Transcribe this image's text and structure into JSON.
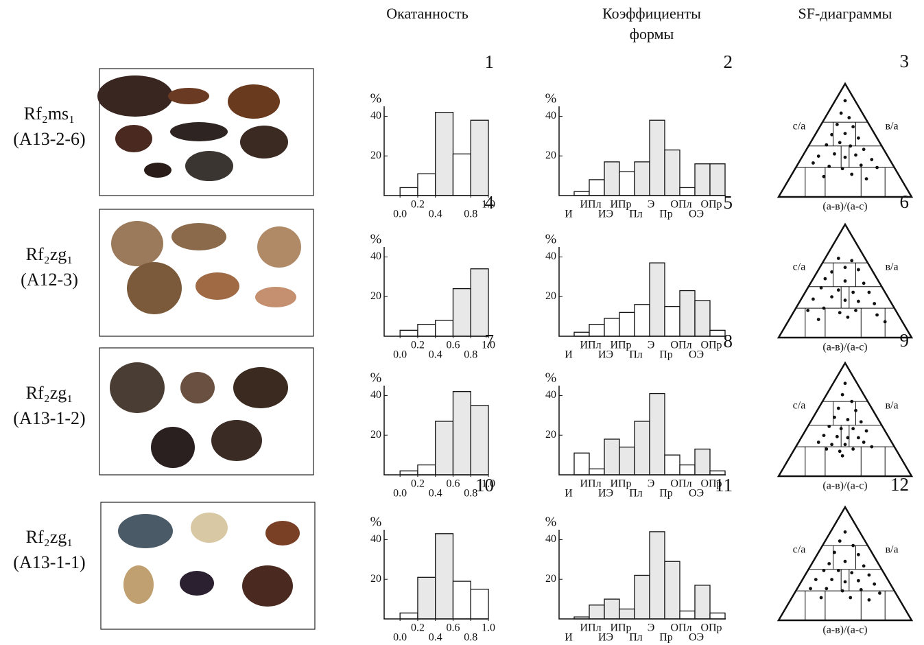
{
  "headers": [
    [
      "Окатанность"
    ],
    [
      "Коэффициенты",
      "формы"
    ],
    [
      "SF-диаграммы"
    ]
  ],
  "rows": [
    {
      "formation": "Rf₂ms₁",
      "sample": "(A13-2-6)"
    },
    {
      "formation": "Rf₂zg₁",
      "sample": "(A12-3)"
    },
    {
      "formation": "Rf₂zg₁",
      "sample": "(A13-1-2)"
    },
    {
      "formation": "Rf₂zg₁",
      "sample": "(A13-1-1)"
    }
  ],
  "chart_data": [
    {
      "type": "histogram",
      "title": "1",
      "y_label": "%",
      "bins": [
        0,
        0.2,
        0.4,
        0.6,
        0.8,
        1.0
      ],
      "values": [
        4,
        11,
        42,
        21,
        38
      ],
      "colors": [
        "#ffffff",
        "#ffffff",
        "#e8e8e8",
        "#ffffff",
        "#e8e8e8"
      ],
      "xlim": [
        -0.18,
        1.0
      ],
      "ylim": [
        0,
        45
      ],
      "yticks": [
        20,
        40
      ],
      "xticks": [
        {
          "value": 0,
          "label": "0.0"
        },
        0.2,
        0.4,
        0.8,
        {
          "value": 1,
          "label": "1.0"
        }
      ]
    },
    {
      "type": "bar",
      "title": "2",
      "y_label": "%",
      "categories": [
        "И",
        "ИПл",
        "ИЭ",
        "ИПр",
        "Пл",
        "Э",
        "Пр",
        "ОПл",
        "ОЭ",
        "ОПр"
      ],
      "values": [
        2,
        8,
        17,
        12,
        17,
        38,
        23,
        4,
        16,
        16
      ],
      "colors": [
        "#ffffff",
        "#ffffff",
        "#e8e8e8",
        "#ffffff",
        "#e8e8e8",
        "#e8e8e8",
        "#e8e8e8",
        "#ffffff",
        "#e8e8e8",
        "#e8e8e8"
      ],
      "ylim": [
        0,
        45
      ],
      "yticks": [
        20,
        40
      ]
    },
    {
      "type": "ternary",
      "title": "3",
      "left_label": "с/а",
      "right_label": "в/а",
      "bottom_label": "(а-в)/(а-с)",
      "x": [
        0.5,
        0.47,
        0.53,
        0.44,
        0.56,
        0.4,
        0.5,
        0.6,
        0.36,
        0.46,
        0.54,
        0.64,
        0.3,
        0.42,
        0.5,
        0.58,
        0.7,
        0.26,
        0.38,
        0.48,
        0.62,
        0.74,
        0.34,
        0.55,
        0.66
      ],
      "y": [
        0.85,
        0.74,
        0.7,
        0.64,
        0.62,
        0.55,
        0.56,
        0.52,
        0.46,
        0.48,
        0.45,
        0.42,
        0.36,
        0.38,
        0.35,
        0.37,
        0.33,
        0.3,
        0.27,
        0.25,
        0.28,
        0.26,
        0.18,
        0.2,
        0.16
      ]
    },
    {
      "type": "histogram",
      "title": "4",
      "y_label": "%",
      "bins": [
        0,
        0.2,
        0.4,
        0.6,
        0.8,
        1.0
      ],
      "values": [
        3,
        6,
        8,
        24,
        34
      ],
      "colors": [
        "#ffffff",
        "#ffffff",
        "#ffffff",
        "#e8e8e8",
        "#e8e8e8"
      ],
      "xlim": [
        -0.18,
        1.0
      ],
      "ylim": [
        0,
        45
      ],
      "yticks": [
        20,
        40
      ],
      "xticks": [
        {
          "value": 0,
          "label": "0.0"
        },
        0.2,
        0.4,
        0.6,
        0.8,
        {
          "value": 1,
          "label": "1.0"
        }
      ]
    },
    {
      "type": "bar",
      "title": "5",
      "y_label": "%",
      "categories": [
        "И",
        "ИПл",
        "ИЭ",
        "ИПр",
        "Пл",
        "Э",
        "Пр",
        "ОПл",
        "ОЭ",
        "ОПр"
      ],
      "values": [
        2,
        6,
        9,
        12,
        16,
        37,
        15,
        23,
        18,
        3
      ],
      "colors": [
        "#ffffff",
        "#ffffff",
        "#ffffff",
        "#ffffff",
        "#ffffff",
        "#e8e8e8",
        "#ffffff",
        "#e8e8e8",
        "#e8e8e8",
        "#ffffff"
      ],
      "ylim": [
        0,
        45
      ],
      "yticks": [
        20,
        40
      ]
    },
    {
      "type": "ternary",
      "title": "6",
      "left_label": "с/а",
      "right_label": "в/а",
      "bottom_label": "(а-в)/(а-с)",
      "x": [
        0.45,
        0.55,
        0.5,
        0.4,
        0.6,
        0.35,
        0.5,
        0.64,
        0.32,
        0.45,
        0.56,
        0.68,
        0.26,
        0.4,
        0.5,
        0.6,
        0.72,
        0.22,
        0.34,
        0.46,
        0.58,
        0.74,
        0.3,
        0.52,
        0.8
      ],
      "y": [
        0.7,
        0.68,
        0.62,
        0.58,
        0.6,
        0.52,
        0.5,
        0.48,
        0.44,
        0.42,
        0.4,
        0.4,
        0.34,
        0.36,
        0.33,
        0.32,
        0.3,
        0.24,
        0.26,
        0.22,
        0.24,
        0.2,
        0.16,
        0.18,
        0.14
      ]
    },
    {
      "type": "histogram",
      "title": "7",
      "y_label": "%",
      "bins": [
        0,
        0.2,
        0.4,
        0.6,
        0.8,
        1.0
      ],
      "values": [
        2,
        5,
        27,
        42,
        35
      ],
      "colors": [
        "#ffffff",
        "#ffffff",
        "#e8e8e8",
        "#e8e8e8",
        "#e8e8e8"
      ],
      "xlim": [
        -0.18,
        1.0
      ],
      "ylim": [
        0,
        45
      ],
      "yticks": [
        20,
        40
      ],
      "xticks": [
        {
          "value": 0,
          "label": "0.0"
        },
        0.2,
        0.4,
        0.6,
        0.8,
        {
          "value": 1,
          "label": "1.0"
        }
      ]
    },
    {
      "type": "bar",
      "title": "8",
      "y_label": "%",
      "categories": [
        "И",
        "ИПл",
        "ИЭ",
        "ИПр",
        "Пл",
        "Э",
        "Пр",
        "ОПл",
        "ОЭ",
        "ОПр"
      ],
      "values": [
        11,
        3,
        18,
        14,
        27,
        41,
        10,
        5,
        13,
        2
      ],
      "colors": [
        "#ffffff",
        "#ffffff",
        "#e8e8e8",
        "#e8e8e8",
        "#e8e8e8",
        "#e8e8e8",
        "#ffffff",
        "#ffffff",
        "#e8e8e8",
        "#ffffff"
      ],
      "ylim": [
        0,
        45
      ],
      "yticks": [
        20,
        40
      ]
    },
    {
      "type": "ternary",
      "title": "9",
      "left_label": "с/а",
      "right_label": "в/а",
      "bottom_label": "(а-в)/(а-с)",
      "x": [
        0.5,
        0.48,
        0.55,
        0.45,
        0.58,
        0.42,
        0.52,
        0.62,
        0.38,
        0.47,
        0.56,
        0.66,
        0.34,
        0.44,
        0.52,
        0.6,
        0.3,
        0.4,
        0.5,
        0.64,
        0.36,
        0.46,
        0.56,
        0.7,
        0.48
      ],
      "y": [
        0.82,
        0.72,
        0.66,
        0.6,
        0.58,
        0.52,
        0.5,
        0.48,
        0.44,
        0.42,
        0.42,
        0.4,
        0.36,
        0.35,
        0.34,
        0.34,
        0.3,
        0.28,
        0.28,
        0.3,
        0.24,
        0.22,
        0.24,
        0.26,
        0.18
      ]
    },
    {
      "type": "histogram",
      "title": "10",
      "y_label": "%",
      "bins": [
        0,
        0.2,
        0.4,
        0.6,
        0.8,
        1.0
      ],
      "values": [
        3,
        21,
        43,
        19,
        15
      ],
      "colors": [
        "#ffffff",
        "#e8e8e8",
        "#e8e8e8",
        "#ffffff",
        "#ffffff"
      ],
      "xlim": [
        -0.18,
        1.0
      ],
      "ylim": [
        0,
        45
      ],
      "yticks": [
        20,
        40
      ],
      "xticks": [
        {
          "value": 0,
          "label": "0.0"
        },
        0.2,
        0.4,
        0.6,
        0.8,
        {
          "value": 1,
          "label": "1.0"
        }
      ]
    },
    {
      "type": "bar",
      "title": "11",
      "y_label": "%",
      "categories": [
        "И",
        "ИПл",
        "ИЭ",
        "ИПр",
        "Пл",
        "Э",
        "Пр",
        "ОПл",
        "ОЭ",
        "ОПр"
      ],
      "values": [
        1,
        7,
        10,
        5,
        22,
        44,
        29,
        4,
        17,
        3
      ],
      "colors": [
        "#ffffff",
        "#e8e8e8",
        "#e8e8e8",
        "#e8e8e8",
        "#e8e8e8",
        "#e8e8e8",
        "#e8e8e8",
        "#ffffff",
        "#e8e8e8",
        "#ffffff"
      ],
      "ylim": [
        0,
        45
      ],
      "yticks": [
        20,
        40
      ]
    },
    {
      "type": "ternary",
      "title": "12",
      "left_label": "с/а",
      "right_label": "в/а",
      "bottom_label": "(а-в)/(а-с)",
      "x": [
        0.5,
        0.46,
        0.56,
        0.42,
        0.6,
        0.38,
        0.5,
        0.64,
        0.34,
        0.45,
        0.55,
        0.68,
        0.28,
        0.4,
        0.5,
        0.6,
        0.72,
        0.24,
        0.36,
        0.48,
        0.62,
        0.76,
        0.32,
        0.54,
        0.68
      ],
      "y": [
        0.78,
        0.7,
        0.66,
        0.6,
        0.58,
        0.5,
        0.52,
        0.48,
        0.44,
        0.44,
        0.42,
        0.4,
        0.36,
        0.36,
        0.34,
        0.35,
        0.32,
        0.28,
        0.28,
        0.26,
        0.27,
        0.24,
        0.2,
        0.2,
        0.18
      ]
    }
  ]
}
